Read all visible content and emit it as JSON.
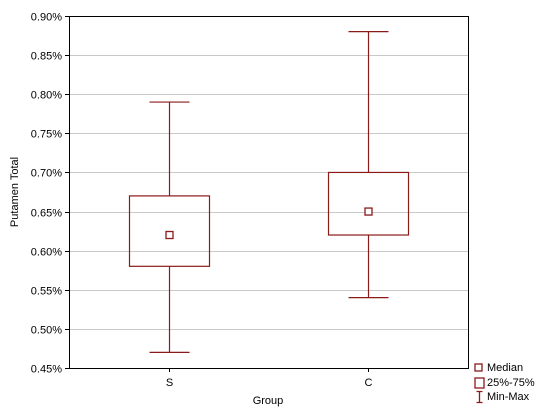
{
  "chart_data": {
    "type": "box",
    "xlabel": "Group",
    "ylabel": "Putamen Total",
    "ylim": [
      0.45,
      0.9
    ],
    "y_ticks": [
      "0.45%",
      "0.50%",
      "0.55%",
      "0.60%",
      "0.65%",
      "0.70%",
      "0.75%",
      "0.80%",
      "0.85%",
      "0.90%"
    ],
    "grid": true,
    "categories": [
      "S",
      "C"
    ],
    "boxes": [
      {
        "category": "S",
        "min": 0.47,
        "q1": 0.58,
        "median": 0.62,
        "q3": 0.67,
        "max": 0.79
      },
      {
        "category": "C",
        "min": 0.54,
        "q1": 0.62,
        "median": 0.65,
        "q3": 0.7,
        "max": 0.88
      }
    ],
    "legend": {
      "position": "bottom-right",
      "items": [
        {
          "label": "Median",
          "symbol": "small-square"
        },
        {
          "label": "25%-75%",
          "symbol": "box"
        },
        {
          "label": "Min-Max",
          "symbol": "whisker"
        }
      ]
    },
    "colors": {
      "box": "#8b1a1a",
      "grid": "#c8c8c8",
      "frame": "#000000"
    }
  }
}
